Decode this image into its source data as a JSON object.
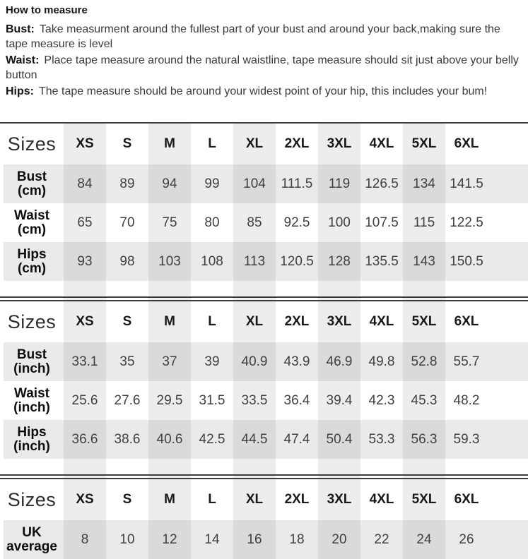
{
  "instructions": {
    "title": "How to measure",
    "items": [
      {
        "label": "Bust:",
        "line1": "Take measurment around the fullest part of your bust and around your back,making sure the",
        "line2": "tape measure is level"
      },
      {
        "label": "Waist:",
        "line1": "Place tape measure around the natural waistline, tape measure should sit just above your belly",
        "line2": "button"
      },
      {
        "label": "Hips:",
        "line1": "The tape measure should be around your widest point of your hip, this includes your bum!",
        "line2": ""
      }
    ]
  },
  "size_chart": {
    "sizes_header_label": "Sizes",
    "size_labels": [
      "XS",
      "S",
      "M",
      "L",
      "XL",
      "2XL",
      "3XL",
      "4XL",
      "5XL",
      "6XL"
    ],
    "tables": [
      {
        "unit": "cm",
        "rows": [
          {
            "label": "Bust",
            "unit_label": "(cm)",
            "values": [
              "84",
              "89",
              "94",
              "99",
              "104",
              "111.5",
              "119",
              "126.5",
              "134",
              "141.5"
            ]
          },
          {
            "label": "Waist",
            "unit_label": "(cm)",
            "values": [
              "65",
              "70",
              "75",
              "80",
              "85",
              "92.5",
              "100",
              "107.5",
              "115",
              "122.5"
            ]
          },
          {
            "label": "Hips",
            "unit_label": "(cm)",
            "values": [
              "93",
              "98",
              "103",
              "108",
              "113",
              "120.5",
              "128",
              "135.5",
              "143",
              "150.5"
            ]
          }
        ]
      },
      {
        "unit": "inch",
        "rows": [
          {
            "label": "Bust",
            "unit_label": "(inch)",
            "values": [
              "33.1",
              "35",
              "37",
              "39",
              "40.9",
              "43.9",
              "46.9",
              "49.8",
              "52.8",
              "55.7"
            ]
          },
          {
            "label": "Waist",
            "unit_label": "(inch)",
            "values": [
              "25.6",
              "27.6",
              "29.5",
              "31.5",
              "33.5",
              "36.4",
              "39.4",
              "42.3",
              "45.3",
              "48.2"
            ]
          },
          {
            "label": "Hips",
            "unit_label": "(inch)",
            "values": [
              "36.6",
              "38.6",
              "40.6",
              "42.5",
              "44.5",
              "47.4",
              "50.4",
              "53.3",
              "56.3",
              "59.3"
            ]
          }
        ]
      },
      {
        "unit": "uk",
        "rows": [
          {
            "label": "UK",
            "unit_label": "average",
            "values": [
              "8",
              "10",
              "12",
              "14",
              "16",
              "18",
              "20",
              "22",
              "24",
              "26"
            ]
          }
        ]
      }
    ]
  },
  "colors": {
    "line": "#3c3c3c",
    "column_stripe": "#ececec",
    "row_shade": "#e9e9e9",
    "body_text": "#3a3a3a",
    "heading_text": "#161616"
  }
}
